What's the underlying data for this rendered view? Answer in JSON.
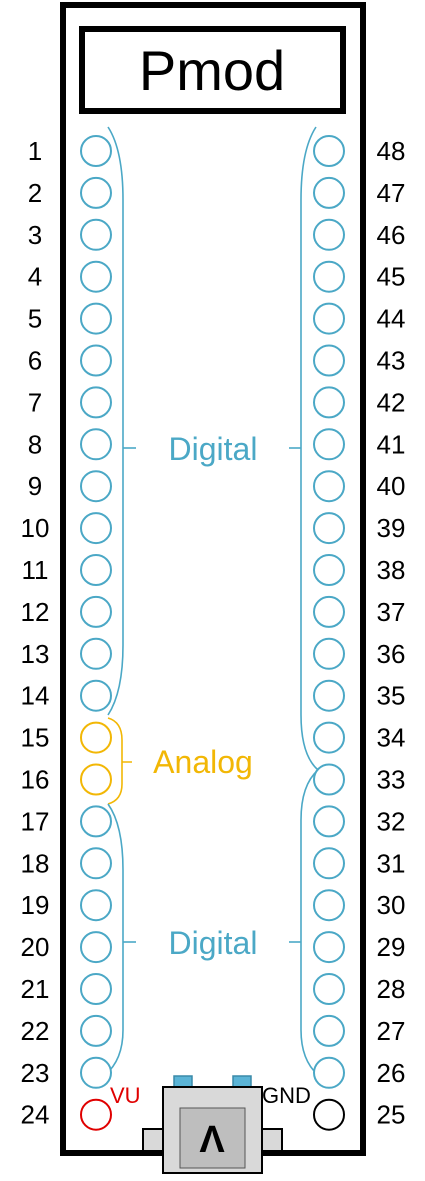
{
  "title": "Pmod",
  "left_pins": [
    "1",
    "2",
    "3",
    "4",
    "5",
    "6",
    "7",
    "8",
    "9",
    "10",
    "11",
    "12",
    "13",
    "14",
    "15",
    "16",
    "17",
    "18",
    "19",
    "20",
    "21",
    "22",
    "23",
    "24"
  ],
  "right_pins": [
    "48",
    "47",
    "46",
    "45",
    "44",
    "43",
    "42",
    "41",
    "40",
    "39",
    "38",
    "37",
    "36",
    "35",
    "34",
    "33",
    "32",
    "31",
    "30",
    "29",
    "28",
    "27",
    "26",
    "25"
  ],
  "groups": {
    "digital_top": "Digital",
    "analog": "Analog",
    "digital_bottom": "Digital"
  },
  "power": {
    "vu": "VU",
    "gnd": "GND"
  },
  "usb_glyph": "Λ",
  "colors": {
    "digital": "#4BA8C6",
    "analog": "#F2B705",
    "vu": "#E00000",
    "gnd": "#000000",
    "outline": "#000000",
    "usb_body": "#D9D9D9",
    "usb_accent": "#5BB4D6"
  }
}
